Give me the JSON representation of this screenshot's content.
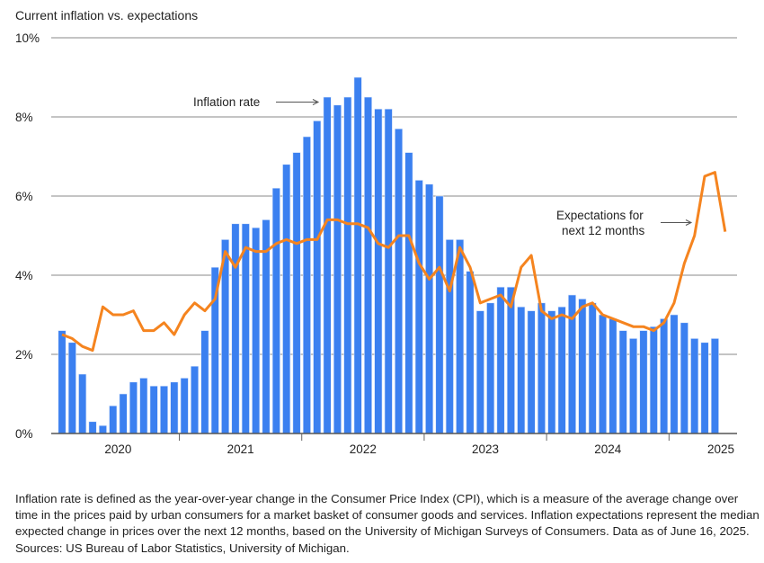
{
  "chart_data": {
    "type": "bar",
    "title": "Current inflation vs. expectations",
    "xlabel": "",
    "ylabel": "",
    "ylim": [
      0,
      10
    ],
    "yticks": [
      "0%",
      "2%",
      "4%",
      "6%",
      "8%",
      "10%"
    ],
    "ytick_values": [
      0,
      2,
      4,
      6,
      8,
      10
    ],
    "grid": true,
    "x_year_labels": [
      "2020",
      "2021",
      "2022",
      "2023",
      "2024",
      "2025"
    ],
    "x_start": "Jan 2020",
    "frequency": "monthly",
    "series": [
      {
        "name": "Inflation rate",
        "type": "bar",
        "color": "#3b80f0",
        "values": [
          2.6,
          2.3,
          1.5,
          0.3,
          0.2,
          0.7,
          1.0,
          1.3,
          1.4,
          1.2,
          1.2,
          1.3,
          1.4,
          1.7,
          2.6,
          4.2,
          4.9,
          5.3,
          5.3,
          5.2,
          5.4,
          6.2,
          6.8,
          7.1,
          7.5,
          7.9,
          8.5,
          8.3,
          8.5,
          9.0,
          8.5,
          8.2,
          8.2,
          7.7,
          7.1,
          6.4,
          6.3,
          6.0,
          4.9,
          4.9,
          4.1,
          3.1,
          3.3,
          3.7,
          3.7,
          3.2,
          3.1,
          3.3,
          3.1,
          3.2,
          3.5,
          3.4,
          3.3,
          3.0,
          2.9,
          2.6,
          2.4,
          2.6,
          2.7,
          2.9,
          3.0,
          2.8,
          2.4,
          2.3,
          2.4
        ]
      },
      {
        "name": "Expectations for next 12 months",
        "type": "line",
        "color": "#f5841f",
        "values": [
          2.5,
          2.4,
          2.2,
          2.1,
          3.2,
          3.0,
          3.0,
          3.1,
          2.6,
          2.6,
          2.8,
          2.5,
          3.0,
          3.3,
          3.1,
          3.4,
          4.6,
          4.2,
          4.7,
          4.6,
          4.6,
          4.8,
          4.9,
          4.8,
          4.9,
          4.9,
          5.4,
          5.4,
          5.3,
          5.3,
          5.2,
          4.8,
          4.7,
          5.0,
          5.0,
          4.3,
          3.9,
          4.2,
          3.6,
          4.7,
          4.2,
          3.3,
          3.4,
          3.5,
          3.2,
          4.2,
          4.5,
          3.1,
          2.9,
          3.0,
          2.9,
          3.2,
          3.3,
          3.0,
          2.9,
          2.8,
          2.7,
          2.7,
          2.6,
          2.8,
          3.3,
          4.3,
          5.0,
          6.5,
          6.6,
          5.1
        ]
      }
    ],
    "annotations": [
      {
        "text": "Inflation rate",
        "points_to": "Inflation rate"
      },
      {
        "text_lines": [
          "Expectations for",
          "next 12 months"
        ],
        "points_to": "Expectations for next 12 months"
      }
    ]
  },
  "footnote": "Inflation rate is defined as the year-over-year change in the Consumer Price Index (CPI), which is a measure of the average change over time in the prices paid by urban consumers for a market basket of consumer goods and services. Inflation expectations represent the median expected change in prices over the next 12 months, based on the University of Michigan Surveys of Consumers. Data as of June 16, 2025. Sources: US Bureau of Labor Statistics, University of Michigan."
}
